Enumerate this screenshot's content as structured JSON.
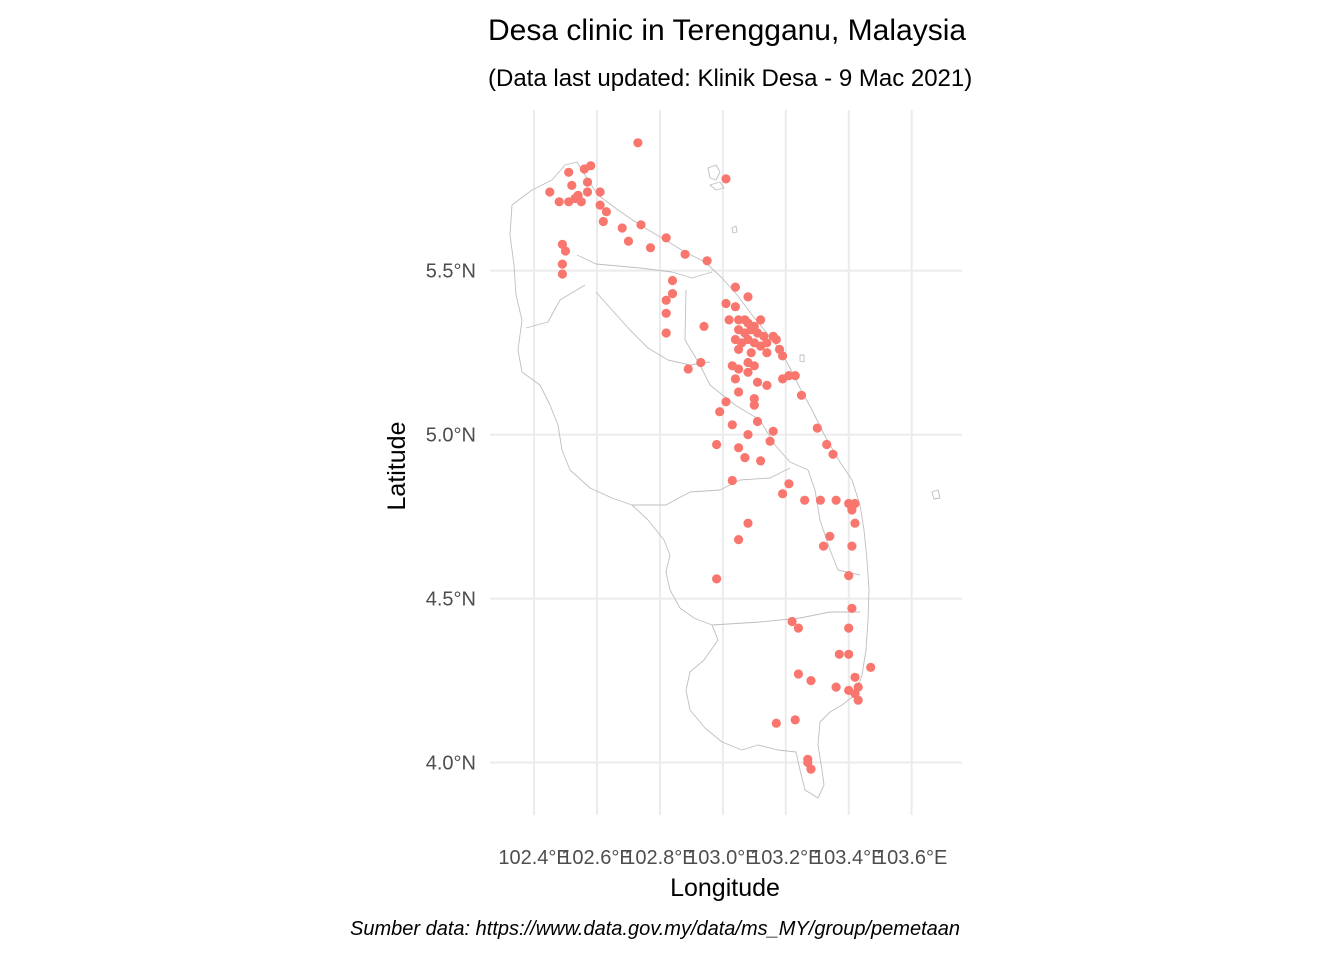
{
  "title": "Desa clinic in Terengganu, Malaysia",
  "subtitle": "(Data last updated: Klinik Desa - 9 Mac 2021)",
  "caption": "Sumber data: https://www.data.gov.my/data/ms_MY/group/pemetaan",
  "colors": {
    "point": "#F8766D",
    "grid": "#EBEBEB",
    "boundary": "#BEBEBE",
    "text": "#4D4D4D"
  },
  "chart_data": {
    "type": "scatter",
    "title": "Desa clinic in Terengganu, Malaysia",
    "subtitle": "(Data last updated: Klinik Desa - 9 Mac 2021)",
    "xlabel": "Longitude",
    "ylabel": "Latitude",
    "xlim": [
      102.26,
      103.76
    ],
    "ylim": [
      3.84,
      5.99
    ],
    "xticks": [
      102.4,
      102.6,
      102.8,
      103.0,
      103.2,
      103.4,
      103.6
    ],
    "xtick_labels": [
      "102.4°E",
      "102.6°E",
      "102.8°E",
      "103.0°E",
      "103.2°E",
      "103.4°E",
      "103.6°E"
    ],
    "yticks": [
      4.0,
      4.5,
      5.0,
      5.5
    ],
    "ytick_labels": [
      "4.0°N",
      "4.5°N",
      "5.0°N",
      "5.5°N"
    ],
    "grid": true,
    "points": [
      [
        102.73,
        5.89
      ],
      [
        102.45,
        5.74
      ],
      [
        102.48,
        5.71
      ],
      [
        102.51,
        5.71
      ],
      [
        102.53,
        5.72
      ],
      [
        102.54,
        5.73
      ],
      [
        102.55,
        5.71
      ],
      [
        102.57,
        5.74
      ],
      [
        102.57,
        5.77
      ],
      [
        102.52,
        5.76
      ],
      [
        102.51,
        5.8
      ],
      [
        102.56,
        5.81
      ],
      [
        102.58,
        5.82
      ],
      [
        102.61,
        5.74
      ],
      [
        102.61,
        5.7
      ],
      [
        102.63,
        5.68
      ],
      [
        102.62,
        5.65
      ],
      [
        102.68,
        5.63
      ],
      [
        102.7,
        5.59
      ],
      [
        102.74,
        5.64
      ],
      [
        102.77,
        5.57
      ],
      [
        102.82,
        5.6
      ],
      [
        102.88,
        5.55
      ],
      [
        102.95,
        5.53
      ],
      [
        103.01,
        5.78
      ],
      [
        102.49,
        5.58
      ],
      [
        102.5,
        5.56
      ],
      [
        102.49,
        5.52
      ],
      [
        102.49,
        5.49
      ],
      [
        102.84,
        5.47
      ],
      [
        102.84,
        5.43
      ],
      [
        102.82,
        5.41
      ],
      [
        102.82,
        5.37
      ],
      [
        102.82,
        5.31
      ],
      [
        102.94,
        5.33
      ],
      [
        102.93,
        5.22
      ],
      [
        102.89,
        5.2
      ],
      [
        103.04,
        5.45
      ],
      [
        103.01,
        5.4
      ],
      [
        103.04,
        5.39
      ],
      [
        103.08,
        5.42
      ],
      [
        103.02,
        5.35
      ],
      [
        103.05,
        5.35
      ],
      [
        103.07,
        5.35
      ],
      [
        103.08,
        5.34
      ],
      [
        103.1,
        5.33
      ],
      [
        103.12,
        5.35
      ],
      [
        103.05,
        5.32
      ],
      [
        103.07,
        5.31
      ],
      [
        103.09,
        5.32
      ],
      [
        103.11,
        5.31
      ],
      [
        103.13,
        5.3
      ],
      [
        103.04,
        5.29
      ],
      [
        103.06,
        5.28
      ],
      [
        103.08,
        5.29
      ],
      [
        103.1,
        5.28
      ],
      [
        103.12,
        5.27
      ],
      [
        103.14,
        5.28
      ],
      [
        103.16,
        5.3
      ],
      [
        103.17,
        5.29
      ],
      [
        103.18,
        5.26
      ],
      [
        103.05,
        5.26
      ],
      [
        103.09,
        5.25
      ],
      [
        103.14,
        5.25
      ],
      [
        103.03,
        5.21
      ],
      [
        103.05,
        5.2
      ],
      [
        103.08,
        5.22
      ],
      [
        103.1,
        5.21
      ],
      [
        103.04,
        5.17
      ],
      [
        103.08,
        5.19
      ],
      [
        103.19,
        5.24
      ],
      [
        103.19,
        5.17
      ],
      [
        103.21,
        5.18
      ],
      [
        103.23,
        5.18
      ],
      [
        103.11,
        5.16
      ],
      [
        103.14,
        5.15
      ],
      [
        103.1,
        5.11
      ],
      [
        103.1,
        5.09
      ],
      [
        103.05,
        5.13
      ],
      [
        102.99,
        5.07
      ],
      [
        103.01,
        5.1
      ],
      [
        103.03,
        5.03
      ],
      [
        103.11,
        5.04
      ],
      [
        103.16,
        5.01
      ],
      [
        103.08,
        5.0
      ],
      [
        103.15,
        4.98
      ],
      [
        102.98,
        4.97
      ],
      [
        103.05,
        4.96
      ],
      [
        103.07,
        4.93
      ],
      [
        103.12,
        4.92
      ],
      [
        103.25,
        5.12
      ],
      [
        103.3,
        5.02
      ],
      [
        103.33,
        4.97
      ],
      [
        103.35,
        4.94
      ],
      [
        103.03,
        4.86
      ],
      [
        103.21,
        4.85
      ],
      [
        103.19,
        4.82
      ],
      [
        103.26,
        4.8
      ],
      [
        103.31,
        4.8
      ],
      [
        103.36,
        4.8
      ],
      [
        103.4,
        4.79
      ],
      [
        103.42,
        4.79
      ],
      [
        103.41,
        4.77
      ],
      [
        103.42,
        4.73
      ],
      [
        103.08,
        4.73
      ],
      [
        103.05,
        4.68
      ],
      [
        103.34,
        4.69
      ],
      [
        103.32,
        4.66
      ],
      [
        103.41,
        4.66
      ],
      [
        102.98,
        4.56
      ],
      [
        103.4,
        4.57
      ],
      [
        103.41,
        4.47
      ],
      [
        103.22,
        4.43
      ],
      [
        103.24,
        4.41
      ],
      [
        103.4,
        4.41
      ],
      [
        103.37,
        4.33
      ],
      [
        103.4,
        4.33
      ],
      [
        103.24,
        4.27
      ],
      [
        103.28,
        4.25
      ],
      [
        103.42,
        4.26
      ],
      [
        103.47,
        4.29
      ],
      [
        103.36,
        4.23
      ],
      [
        103.4,
        4.22
      ],
      [
        103.43,
        4.23
      ],
      [
        103.42,
        4.21
      ],
      [
        103.43,
        4.19
      ],
      [
        103.17,
        4.12
      ],
      [
        103.23,
        4.13
      ],
      [
        103.27,
        4.01
      ],
      [
        103.27,
        4.0
      ],
      [
        103.28,
        3.98
      ]
    ]
  }
}
